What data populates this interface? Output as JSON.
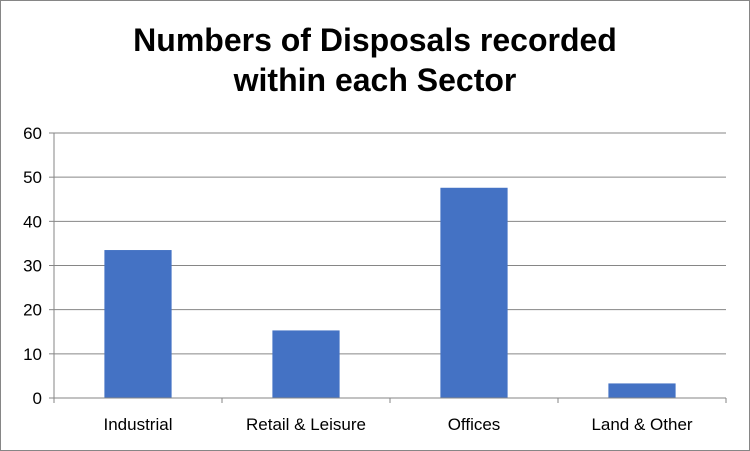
{
  "chart_data": {
    "type": "bar",
    "title": "Numbers of Disposals recorded\nwithin each Sector",
    "categories": [
      "Industrial",
      "Retail & Leisure",
      "Offices",
      "Land & Other"
    ],
    "values": [
      33.5,
      15.3,
      47.6,
      3.3
    ],
    "ylim": [
      0,
      60
    ],
    "yticks": [
      0,
      10,
      20,
      30,
      40,
      50,
      60
    ],
    "grid": true,
    "legend": "none",
    "colors": {
      "bar": "#4472C4",
      "grid": "#868686",
      "axis": "#868686"
    }
  }
}
